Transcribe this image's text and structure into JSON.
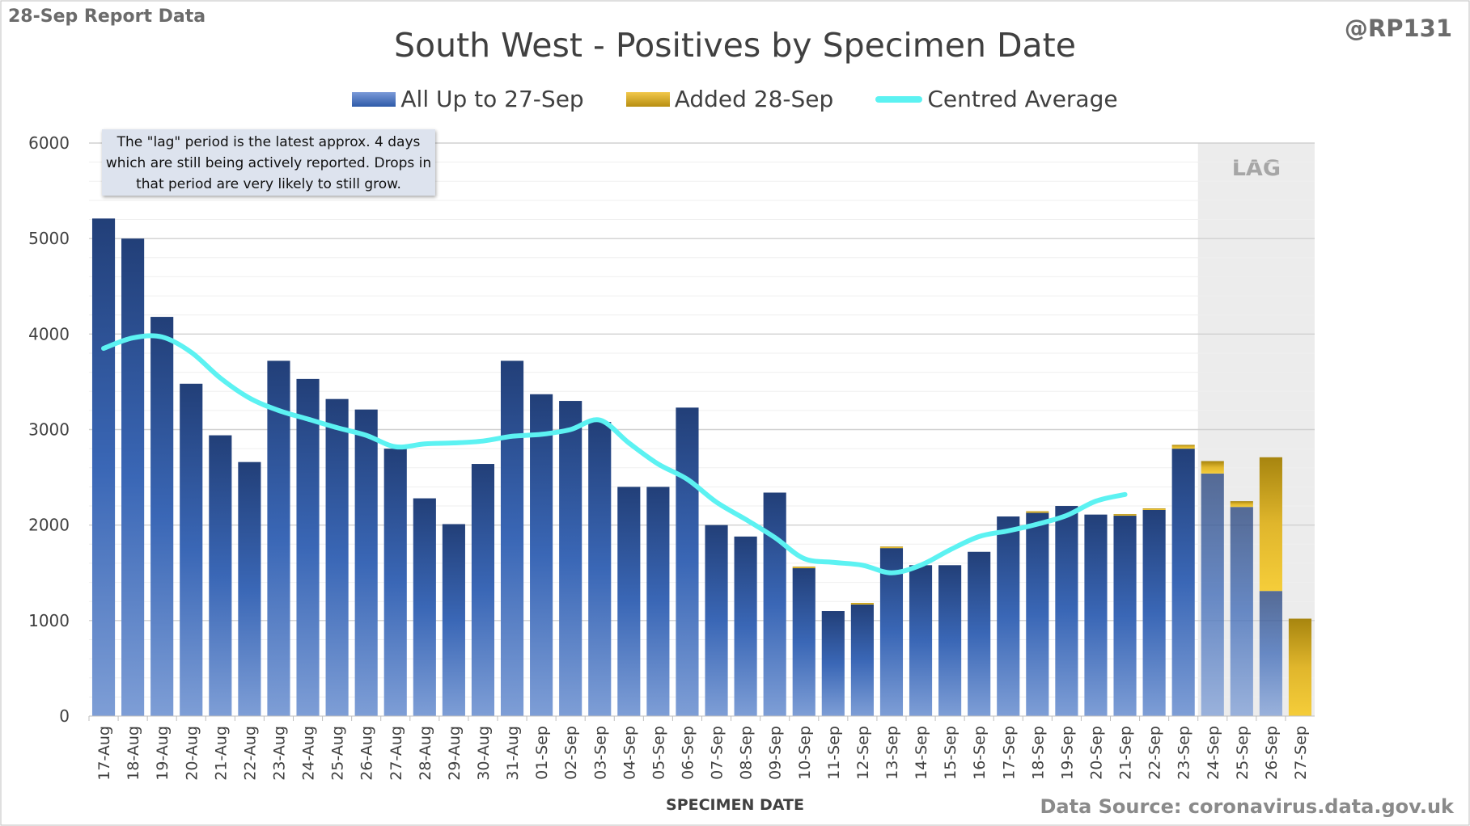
{
  "header": {
    "report_label": "28-Sep Report Data",
    "handle": "@RP131",
    "source": "Data Source: coronavirus.data.gov.uk"
  },
  "note": "The \"lag\" period is the latest approx. 4 days which are still being actively reported. Drops in that period are very likely to still grow.",
  "lag_label": "LAG",
  "colors": {
    "base": "#2e5aa8",
    "added": "#d4a418",
    "average": "#5cf2f2",
    "lag_shade": "#ececec",
    "grid": "#d9d9d9"
  },
  "chart_data": {
    "type": "bar",
    "stacked": true,
    "title": "South West - Positives by Specimen Date",
    "xlabel": "SPECIMEN DATE",
    "ylabel": "",
    "ylim": [
      0,
      6000
    ],
    "yticks": [
      0,
      1000,
      2000,
      3000,
      4000,
      5000,
      6000
    ],
    "grid": true,
    "legend_position": "top",
    "categories": [
      "17-Aug",
      "18-Aug",
      "19-Aug",
      "20-Aug",
      "21-Aug",
      "22-Aug",
      "23-Aug",
      "24-Aug",
      "25-Aug",
      "26-Aug",
      "27-Aug",
      "28-Aug",
      "29-Aug",
      "30-Aug",
      "31-Aug",
      "01-Sep",
      "02-Sep",
      "03-Sep",
      "04-Sep",
      "05-Sep",
      "06-Sep",
      "07-Sep",
      "08-Sep",
      "09-Sep",
      "10-Sep",
      "11-Sep",
      "12-Sep",
      "13-Sep",
      "14-Sep",
      "15-Sep",
      "16-Sep",
      "17-Sep",
      "18-Sep",
      "19-Sep",
      "20-Sep",
      "21-Sep",
      "22-Sep",
      "23-Sep",
      "24-Sep",
      "25-Sep",
      "26-Sep",
      "27-Sep"
    ],
    "lag_categories": [
      "24-Sep",
      "25-Sep",
      "26-Sep",
      "27-Sep"
    ],
    "series": [
      {
        "name": "All Up to 27-Sep",
        "values": [
          5210,
          5000,
          4180,
          3480,
          2940,
          2660,
          3720,
          3530,
          3320,
          3210,
          2800,
          2280,
          2010,
          2640,
          3720,
          3370,
          3300,
          3080,
          2400,
          2400,
          3230,
          2000,
          1880,
          2340,
          1550,
          1100,
          1170,
          1760,
          1580,
          1580,
          1720,
          2090,
          2130,
          2200,
          2110,
          2100,
          2160,
          2800,
          2540,
          2190,
          1310,
          0
        ]
      },
      {
        "name": "Added 28-Sep",
        "values": [
          0,
          0,
          0,
          0,
          0,
          0,
          0,
          0,
          0,
          0,
          0,
          0,
          0,
          0,
          0,
          0,
          0,
          0,
          0,
          0,
          0,
          0,
          0,
          0,
          15,
          0,
          15,
          15,
          0,
          0,
          0,
          0,
          15,
          0,
          0,
          15,
          15,
          40,
          130,
          60,
          1400,
          1020
        ]
      },
      {
        "name": "Centred Average",
        "type": "line",
        "values": [
          3850,
          3960,
          3970,
          3810,
          3540,
          3330,
          3200,
          3110,
          3020,
          2940,
          2820,
          2850,
          2860,
          2880,
          2930,
          2950,
          3000,
          3100,
          2860,
          2640,
          2480,
          2240,
          2060,
          1870,
          1650,
          1610,
          1580,
          1500,
          1580,
          1740,
          1880,
          1940,
          2010,
          2100,
          2250,
          2320,
          null,
          null,
          null,
          null,
          null,
          null
        ]
      }
    ]
  }
}
